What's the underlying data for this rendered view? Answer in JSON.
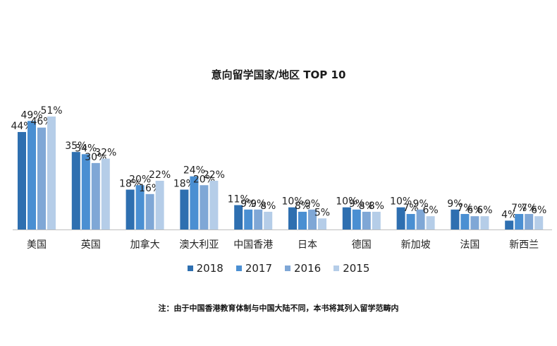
{
  "chart_data": {
    "type": "bar",
    "title": "意向留学国家/地区 TOP 10",
    "categories": [
      "美国",
      "英国",
      "加拿大",
      "澳大利亚",
      "中国香港",
      "日本",
      "德国",
      "新加坡",
      "法国",
      "新西兰"
    ],
    "series": [
      {
        "name": "2018",
        "color": "#2e6fb0",
        "values": [
          44,
          35,
          18,
          18,
          11,
          10,
          10,
          10,
          9,
          4
        ]
      },
      {
        "name": "2017",
        "color": "#4a8fd2",
        "values": [
          49,
          34,
          20,
          24,
          9,
          8,
          9,
          7,
          7,
          7
        ]
      },
      {
        "name": "2016",
        "color": "#7fa7d6",
        "values": [
          46,
          30,
          16,
          20,
          9,
          9,
          8,
          9,
          6,
          7
        ]
      },
      {
        "name": "2015",
        "color": "#b5cde8",
        "values": [
          51,
          32,
          22,
          22,
          8,
          5,
          8,
          6,
          6,
          6
        ]
      }
    ],
    "value_suffix": "%",
    "ylim": [
      0,
      56
    ],
    "legend_position": "bottom",
    "grid": false
  },
  "footnote": "注：由于中国香港教育体制与中国大陆不同，本书将其列入留学范畴内"
}
